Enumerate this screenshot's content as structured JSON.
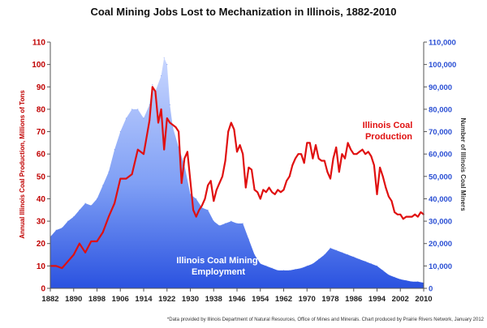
{
  "chart_data": {
    "type": "area+line",
    "title": "Coal Mining Jobs Lost to Mechanization in Illinois, 1882-2010",
    "footnote": "*Data provided by Illinois Department of Natural Resources, Office of Mines and Minerals. Chart produced by Prairie Rivers Network, January 2012",
    "y_left": {
      "label": "Annual Illinois Coal Production, Millions of Tons",
      "ylim": [
        0,
        110
      ],
      "ticks": [
        "0",
        "10",
        "20",
        "30",
        "40",
        "50",
        "60",
        "70",
        "80",
        "90",
        "100",
        "110"
      ]
    },
    "y_right": {
      "label": "Number of Illinois Coal Miners",
      "ylim": [
        0,
        110000
      ],
      "ticks": [
        "0",
        "10,000",
        "20,000",
        "30,000",
        "40,000",
        "50,000",
        "60,000",
        "70,000",
        "80,000",
        "90,000",
        "100,000",
        "110,000"
      ]
    },
    "x_axis": {
      "xlim": [
        1882,
        2010
      ],
      "ticks": [
        "1882",
        "1890",
        "1898",
        "1906",
        "1914",
        "1922",
        "1930",
        "1938",
        "1946",
        "1954",
        "1962",
        "1970",
        "1978",
        "1986",
        "1994",
        "2002",
        "2010"
      ]
    },
    "grid": false,
    "series": [
      {
        "name": "Illinois Coal Mining Employment",
        "axis": "right",
        "style": "area",
        "color": "#3366ee",
        "x": [
          1882,
          1884,
          1886,
          1888,
          1890,
          1892,
          1894,
          1896,
          1898,
          1900,
          1902,
          1904,
          1906,
          1908,
          1910,
          1912,
          1914,
          1916,
          1917,
          1918,
          1920,
          1921,
          1922,
          1923,
          1924,
          1926,
          1928,
          1930,
          1932,
          1934,
          1936,
          1938,
          1940,
          1942,
          1944,
          1946,
          1948,
          1950,
          1952,
          1954,
          1956,
          1958,
          1960,
          1962,
          1964,
          1966,
          1968,
          1970,
          1972,
          1974,
          1976,
          1978,
          1980,
          1982,
          1984,
          1986,
          1988,
          1990,
          1992,
          1994,
          1996,
          1998,
          2000,
          2002,
          2004,
          2006,
          2008,
          2010
        ],
        "values": [
          23000,
          26000,
          27000,
          30000,
          32000,
          35000,
          38000,
          37000,
          40000,
          46000,
          52000,
          62000,
          70000,
          76000,
          80000,
          80000,
          76000,
          82000,
          91000,
          88000,
          95000,
          103000,
          100000,
          82000,
          72000,
          63000,
          55000,
          42000,
          40000,
          36000,
          35000,
          30000,
          28000,
          29000,
          30000,
          29000,
          29000,
          22000,
          15000,
          11000,
          10000,
          9000,
          8000,
          8000,
          8000,
          8500,
          9000,
          10000,
          11000,
          13000,
          15000,
          18000,
          17000,
          16000,
          15000,
          14000,
          13000,
          12000,
          11000,
          10000,
          8000,
          6000,
          5000,
          4000,
          3500,
          3000,
          3000,
          2500
        ]
      },
      {
        "name": "Illinois Coal Production",
        "axis": "left",
        "style": "line",
        "color": "#e01010",
        "x": [
          1882,
          1884,
          1886,
          1888,
          1890,
          1892,
          1894,
          1896,
          1898,
          1900,
          1902,
          1904,
          1906,
          1908,
          1910,
          1912,
          1914,
          1916,
          1917,
          1918,
          1919,
          1920,
          1921,
          1922,
          1923,
          1924,
          1925,
          1926,
          1927,
          1928,
          1929,
          1930,
          1931,
          1932,
          1933,
          1934,
          1935,
          1936,
          1937,
          1938,
          1939,
          1940,
          1941,
          1942,
          1943,
          1944,
          1945,
          1946,
          1947,
          1948,
          1949,
          1950,
          1951,
          1952,
          1953,
          1954,
          1955,
          1956,
          1957,
          1958,
          1959,
          1960,
          1961,
          1962,
          1963,
          1964,
          1965,
          1966,
          1967,
          1968,
          1969,
          1970,
          1971,
          1972,
          1973,
          1974,
          1975,
          1976,
          1977,
          1978,
          1979,
          1980,
          1981,
          1982,
          1983,
          1984,
          1985,
          1986,
          1987,
          1988,
          1989,
          1990,
          1991,
          1992,
          1993,
          1994,
          1995,
          1996,
          1997,
          1998,
          1999,
          2000,
          2001,
          2002,
          2003,
          2004,
          2005,
          2006,
          2007,
          2008,
          2009,
          2010
        ],
        "values": [
          10,
          10,
          9,
          12,
          15,
          20,
          16,
          21,
          21,
          25,
          32,
          38,
          49,
          49,
          51,
          62,
          60,
          75,
          90,
          88,
          74,
          80,
          62,
          76,
          74,
          73,
          72,
          70,
          47,
          58,
          61,
          48,
          35,
          32,
          35,
          37,
          40,
          46,
          48,
          39,
          44,
          47,
          50,
          57,
          70,
          74,
          71,
          61,
          64,
          60,
          45,
          54,
          53,
          44,
          43,
          40,
          44,
          43,
          45,
          43,
          42,
          44,
          43,
          44,
          48,
          50,
          55,
          58,
          60,
          60,
          56,
          65,
          65,
          58,
          64,
          58,
          57,
          57,
          52,
          49,
          58,
          63,
          52,
          60,
          58,
          65,
          62,
          60,
          60,
          61,
          62,
          60,
          61,
          59,
          55,
          42,
          54,
          50,
          45,
          41,
          39,
          34,
          33,
          33,
          31,
          32,
          32,
          32,
          33,
          32,
          34,
          33
        ]
      }
    ],
    "annotations": [
      {
        "lines": [
          "Illinois Coal",
          "Production"
        ],
        "color": "#e01010"
      },
      {
        "lines": [
          "Illinois Coal Mining",
          "Employment"
        ],
        "color": "#ffffff"
      }
    ]
  }
}
